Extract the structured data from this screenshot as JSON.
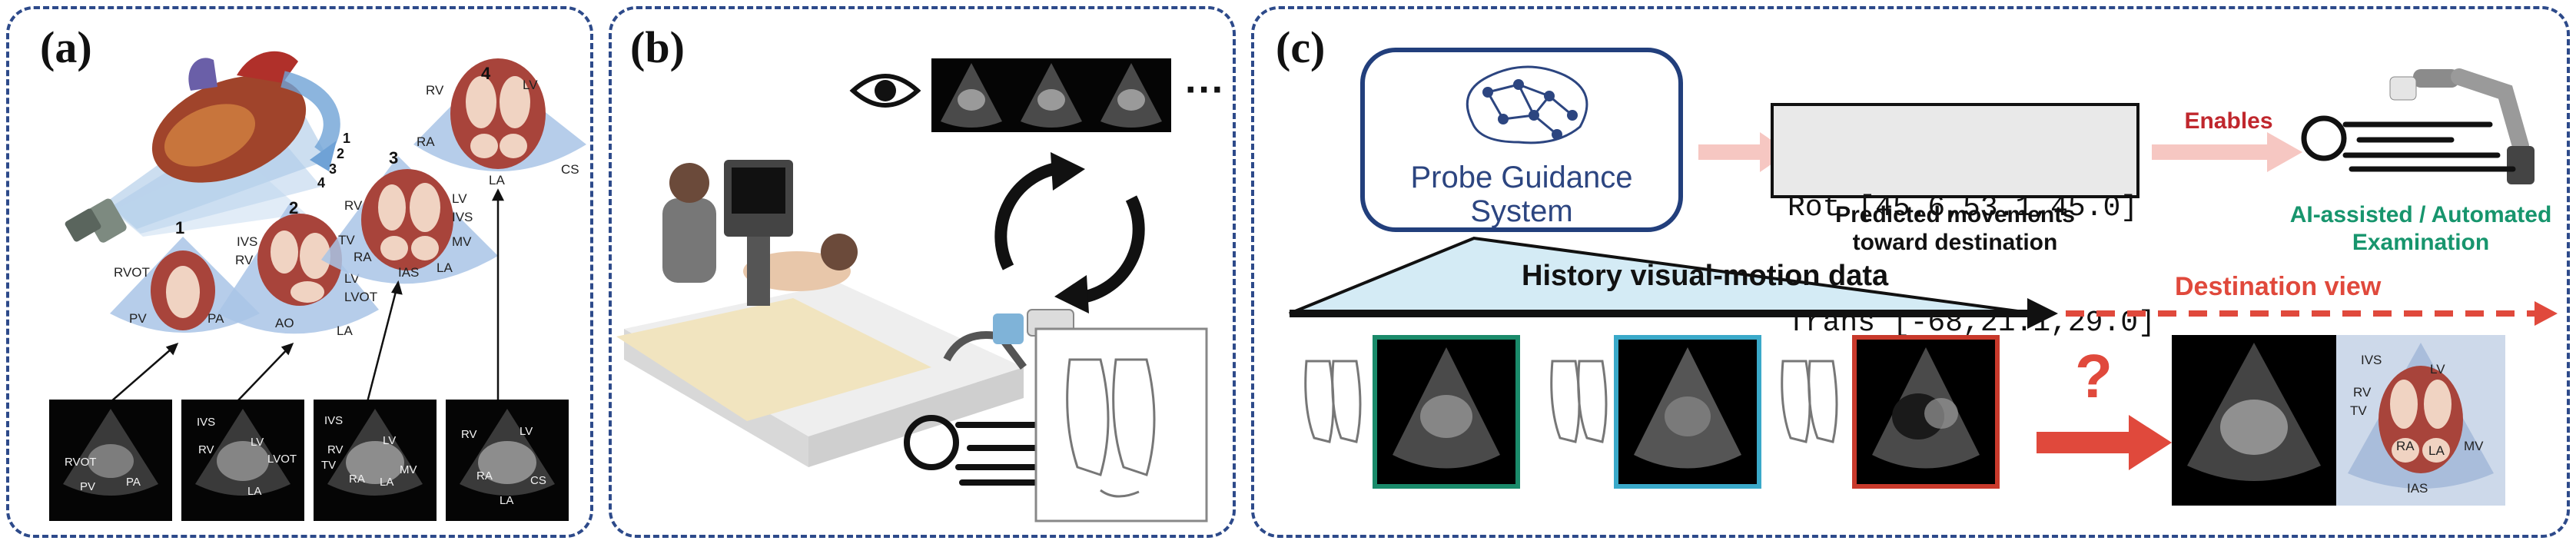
{
  "panels": {
    "a": {
      "label": "(a)"
    },
    "b": {
      "label": "(b)"
    },
    "c": {
      "label": "(c)"
    }
  },
  "panel_a": {
    "view_numbers": [
      "1",
      "2",
      "3",
      "4"
    ],
    "plane_numbers": [
      "1",
      "2",
      "3",
      "4"
    ],
    "view1_labels": [
      "RVOT",
      "PV",
      "PA"
    ],
    "view2_labels": [
      "IVS",
      "RV",
      "AO",
      "LV",
      "LVOT",
      "LA"
    ],
    "view3_labels": [
      "RV",
      "TV",
      "RA",
      "LV",
      "IVS",
      "MV",
      "IAS",
      "LA"
    ],
    "view4_labels": [
      "RV",
      "LV",
      "RA",
      "CS",
      "LA"
    ],
    "us1_labels": [
      "RVOT",
      "PA",
      "PV"
    ],
    "us2_labels": [
      "IVS",
      "RV",
      "LV",
      "LVOT",
      "LA"
    ],
    "us3_labels": [
      "IVS",
      "RV",
      "TV",
      "LV",
      "MV",
      "RA",
      "LA"
    ],
    "us4_labels": [
      "RV",
      "LV",
      "RA",
      "CS",
      "LA"
    ]
  },
  "panel_b": {
    "ellipsis": "···"
  },
  "panel_c": {
    "system_line1": "Probe Guidance",
    "system_line2": "System",
    "rot_line": "Rot [45.6,53.1,45.0]",
    "trans_line": "Trans [-68,21.1,29.0]",
    "predicted_line1": "Predicted movements",
    "predicted_line2": "toward destination",
    "enables": "Enables",
    "ai_line1": "AI-assisted / Automated",
    "ai_line2": "Examination",
    "history": "History visual-motion data",
    "destination": "Destination view",
    "question": "?",
    "dest_labels": [
      "IVS",
      "RV",
      "TV",
      "LV",
      "RA",
      "LA",
      "MV",
      "IAS"
    ]
  },
  "colors": {
    "panel_border": "#2d4a8a",
    "system_text": "#2c4580",
    "enables_red": "#c0272d",
    "ai_green": "#17956d",
    "frame_green": "#1a8a6a",
    "frame_cyan": "#3aa9c9",
    "frame_red": "#c8392b",
    "history_fill": "#d4ebf5",
    "destination_red": "#e0493c"
  }
}
